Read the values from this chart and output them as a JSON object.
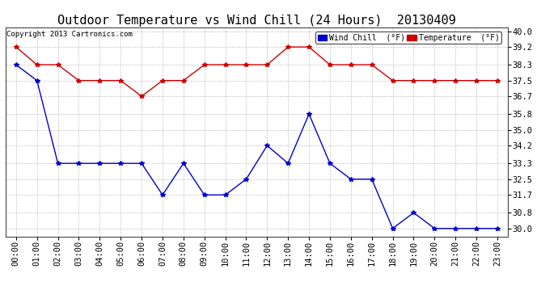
{
  "title": "Outdoor Temperature vs Wind Chill (24 Hours)  20130409",
  "copyright": "Copyright 2013 Cartronics.com",
  "x_labels": [
    "00:00",
    "01:00",
    "02:00",
    "03:00",
    "04:00",
    "05:00",
    "06:00",
    "07:00",
    "08:00",
    "09:00",
    "10:00",
    "11:00",
    "12:00",
    "13:00",
    "14:00",
    "15:00",
    "16:00",
    "17:00",
    "18:00",
    "19:00",
    "20:00",
    "21:00",
    "22:00",
    "23:00"
  ],
  "temperature": [
    39.2,
    38.3,
    38.3,
    37.5,
    37.5,
    37.5,
    36.7,
    37.5,
    37.5,
    38.3,
    38.3,
    38.3,
    38.3,
    39.2,
    39.2,
    38.3,
    38.3,
    38.3,
    37.5,
    37.5,
    37.5,
    37.5,
    37.5,
    37.5
  ],
  "wind_chill": [
    38.3,
    37.5,
    33.3,
    33.3,
    33.3,
    33.3,
    33.3,
    31.7,
    33.3,
    31.7,
    31.7,
    32.5,
    34.2,
    33.3,
    35.8,
    33.3,
    32.5,
    32.5,
    30.0,
    30.8,
    30.0,
    30.0,
    30.0,
    30.0
  ],
  "temp_color": "#cc0000",
  "wind_color": "#0000cc",
  "bg_color": "#ffffff",
  "grid_color": "#aaaaaa",
  "ylim_min": 29.6,
  "ylim_max": 40.2,
  "yticks": [
    30.0,
    30.8,
    31.7,
    32.5,
    33.3,
    34.2,
    35.0,
    35.8,
    36.7,
    37.5,
    38.3,
    39.2,
    40.0
  ],
  "legend_wind_label": "Wind Chill  (°F)",
  "legend_temp_label": "Temperature  (°F)",
  "title_fontsize": 11,
  "tick_fontsize": 7.5,
  "copyright_fontsize": 6.5
}
